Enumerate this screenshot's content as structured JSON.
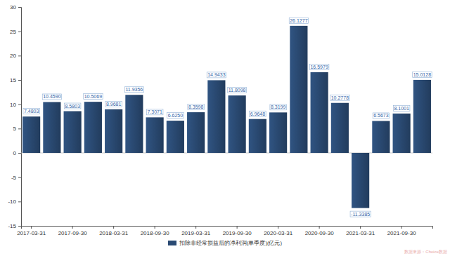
{
  "chart_data": {
    "type": "bar",
    "categories": [
      "2017-03-31",
      null,
      "2017-09-30",
      null,
      "2018-03-31",
      null,
      "2018-09-30",
      null,
      "2019-03-31",
      null,
      "2019-09-30",
      null,
      "2020-03-31",
      null,
      "2020-09-30",
      null,
      "2021-03-31",
      null,
      "2021-09-30",
      null
    ],
    "series": [
      {
        "name": "扣除非经常损益后的净利润(单季度)(亿元)",
        "color": "#2a4a73",
        "values": [
          7.4803,
          10.459,
          8.5803,
          10.5069,
          8.9681,
          11.9356,
          7.3071,
          6.625,
          8.3598,
          14.9433,
          11.8098,
          6.9648,
          8.3199,
          26.1277,
          16.5979,
          10.2778,
          -11.3385,
          6.5673,
          8.1001,
          15.0128
        ],
        "value_labels": [
          "7.4803",
          "10.4590",
          "8.5803",
          "10.5069",
          "8.9681",
          "11.9356",
          "7.3071",
          "6.6250",
          "8.3598",
          "14.9433",
          "11.8098",
          "6.9648",
          "8.3199",
          "26.1277",
          "16.5979",
          "10.2778",
          "-11.3385",
          "6.5673",
          "8.1001",
          "15.0128"
        ]
      }
    ],
    "ylim": [
      -15,
      30
    ],
    "yticks": [
      -15,
      -10,
      -5,
      0,
      5,
      10,
      15,
      20,
      25,
      30
    ],
    "data_labels": true,
    "grid": false,
    "legend": "bottom",
    "source": "数据来源：Choice数据"
  }
}
